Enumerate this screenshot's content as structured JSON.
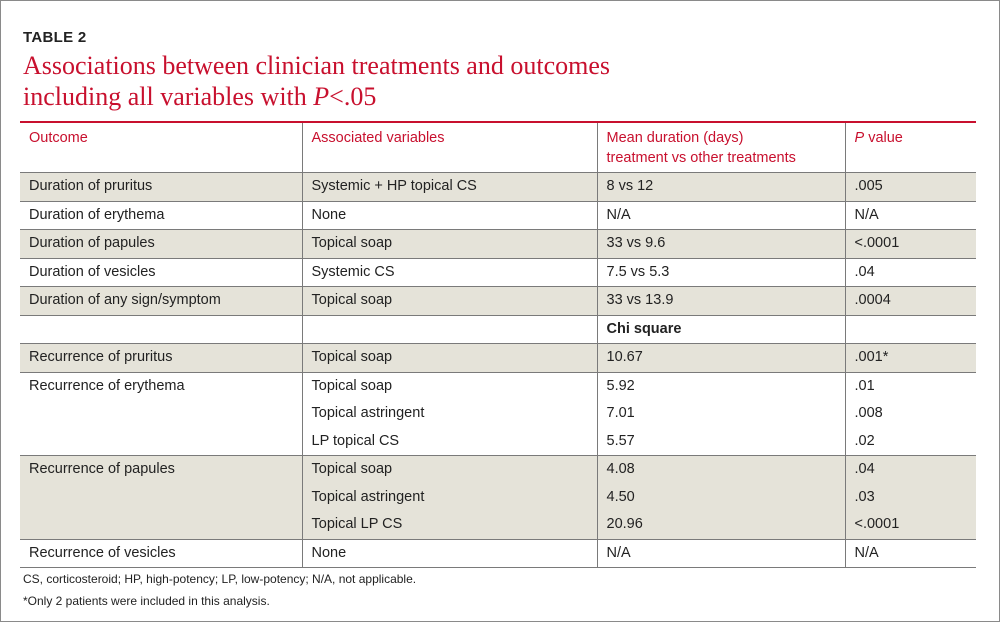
{
  "table_label": "TABLE 2",
  "title": {
    "line1": "Associations between clinician treatments and outcomes",
    "line2_prefix": "including all variables with ",
    "line2_italic": "P",
    "line2_suffix": "<.05"
  },
  "columns": {
    "outcome": "Outcome",
    "associated": "Associated variables",
    "mean_line1": "Mean duration (days)",
    "mean_line2": "treatment vs other treatments",
    "pvalue_italic": "P",
    "pvalue_rest": " value"
  },
  "rows": [
    {
      "outcome": "Duration of pruritus",
      "variable": "Systemic + HP topical CS",
      "value": "8 vs 12",
      "p": ".005"
    },
    {
      "outcome": "Duration of erythema",
      "variable": "None",
      "value": "N/A",
      "p": "N/A"
    },
    {
      "outcome": "Duration of papules",
      "variable": "Topical soap",
      "value": "33 vs 9.6",
      "p": "<.0001"
    },
    {
      "outcome": "Duration of vesicles",
      "variable": "Systemic CS",
      "value": "7.5 vs 5.3",
      "p": ".04"
    },
    {
      "outcome": "Duration of any sign/symptom",
      "variable": "Topical soap",
      "value": "33 vs 13.9",
      "p": ".0004"
    },
    {
      "outcome": "",
      "variable": "",
      "value": "Chi square",
      "p": ""
    },
    {
      "outcome": "Recurrence of pruritus",
      "variable": "Topical soap",
      "value": "10.67",
      "p": ".001*"
    },
    {
      "outcome": "Recurrence of erythema",
      "variable": "Topical soap",
      "value": "5.92",
      "p": ".01"
    },
    {
      "outcome": "",
      "variable": "Topical astringent",
      "value": "7.01",
      "p": ".008"
    },
    {
      "outcome": "",
      "variable": "LP topical CS",
      "value": "5.57",
      "p": ".02"
    },
    {
      "outcome": "Recurrence of papules",
      "variable": "Topical soap",
      "value": "4.08",
      "p": ".04"
    },
    {
      "outcome": "",
      "variable": "Topical astringent",
      "value": "4.50",
      "p": ".03"
    },
    {
      "outcome": "",
      "variable": "Topical LP CS",
      "value": "20.96",
      "p": "<.0001"
    },
    {
      "outcome": "Recurrence of vesicles",
      "variable": "None",
      "value": "N/A",
      "p": "N/A"
    }
  ],
  "footnotes": {
    "abbrev": "CS, corticosteroid; HP, high-potency; LP, low-potency; N/A, not applicable.",
    "star": "*Only 2 patients were included in this analysis."
  },
  "colors": {
    "accent": "#c8102e",
    "shade": "#e5e3d9",
    "rule": "#7a7a7a"
  }
}
